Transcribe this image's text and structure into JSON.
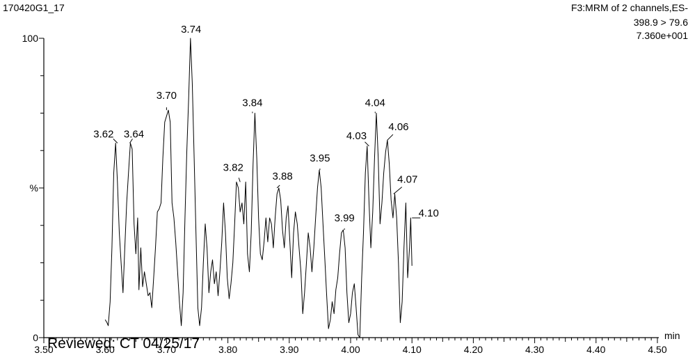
{
  "header": {
    "sample_id": "170420G1_17",
    "scan_info": "F3:MRM of 2 channels,ES-",
    "transition": "398.9 > 79.6",
    "intensity": "7.360e+001"
  },
  "stamp": "Reviewed: CT 04/25/17",
  "chart_data": {
    "type": "line",
    "xlabel": "min",
    "ylabel": "%",
    "xlim": [
      3.5,
      4.5
    ],
    "ylim": [
      0,
      100
    ],
    "x_ticks": [
      "3.50",
      "3.60",
      "3.70",
      "3.80",
      "3.90",
      "4.00",
      "4.10",
      "4.20",
      "4.30",
      "4.40",
      "4.50"
    ],
    "y_ticks": [
      "0",
      "%",
      "100"
    ],
    "peak_labels": [
      {
        "x": 3.62,
        "y": 65,
        "label": "3.62"
      },
      {
        "x": 3.64,
        "y": 65,
        "label": "3.64"
      },
      {
        "x": 3.7,
        "y": 76,
        "label": "3.70"
      },
      {
        "x": 3.74,
        "y": 100,
        "label": "3.74"
      },
      {
        "x": 3.82,
        "y": 52,
        "label": "3.82"
      },
      {
        "x": 3.84,
        "y": 75,
        "label": "3.84"
      },
      {
        "x": 3.88,
        "y": 50,
        "label": "3.88"
      },
      {
        "x": 3.95,
        "y": 56,
        "label": "3.95"
      },
      {
        "x": 3.99,
        "y": 36,
        "label": "3.99"
      },
      {
        "x": 4.03,
        "y": 64,
        "label": "4.03"
      },
      {
        "x": 4.04,
        "y": 75,
        "label": "4.04"
      },
      {
        "x": 4.06,
        "y": 66,
        "label": "4.06"
      },
      {
        "x": 4.07,
        "y": 48,
        "label": "4.07"
      },
      {
        "x": 4.1,
        "y": 40,
        "label": "4.10"
      }
    ],
    "series": [
      {
        "points": [
          [
            3.6,
            6
          ],
          [
            3.603,
            5
          ],
          [
            3.605,
            4
          ],
          [
            3.608,
            12
          ],
          [
            3.611,
            30
          ],
          [
            3.614,
            55
          ],
          [
            3.617,
            65
          ],
          [
            3.62,
            52
          ],
          [
            3.623,
            35
          ],
          [
            3.626,
            25
          ],
          [
            3.629,
            15
          ],
          [
            3.632,
            30
          ],
          [
            3.635,
            45
          ],
          [
            3.638,
            55
          ],
          [
            3.641,
            65
          ],
          [
            3.644,
            63
          ],
          [
            3.647,
            38
          ],
          [
            3.65,
            28
          ],
          [
            3.653,
            40
          ],
          [
            3.655,
            16
          ],
          [
            3.658,
            30
          ],
          [
            3.661,
            17
          ],
          [
            3.664,
            22
          ],
          [
            3.667,
            18
          ],
          [
            3.67,
            14
          ],
          [
            3.673,
            15
          ],
          [
            3.676,
            10
          ],
          [
            3.679,
            20
          ],
          [
            3.682,
            30
          ],
          [
            3.685,
            42
          ],
          [
            3.688,
            43
          ],
          [
            3.691,
            45
          ],
          [
            3.694,
            60
          ],
          [
            3.697,
            72
          ],
          [
            3.7,
            74
          ],
          [
            3.703,
            76
          ],
          [
            3.706,
            72
          ],
          [
            3.709,
            45
          ],
          [
            3.712,
            40
          ],
          [
            3.715,
            32
          ],
          [
            3.718,
            22
          ],
          [
            3.721,
            12
          ],
          [
            3.724,
            4
          ],
          [
            3.727,
            15
          ],
          [
            3.73,
            40
          ],
          [
            3.733,
            62
          ],
          [
            3.736,
            80
          ],
          [
            3.739,
            100
          ],
          [
            3.742,
            85
          ],
          [
            3.745,
            60
          ],
          [
            3.748,
            35
          ],
          [
            3.751,
            10
          ],
          [
            3.754,
            4
          ],
          [
            3.757,
            10
          ],
          [
            3.76,
            25
          ],
          [
            3.763,
            38
          ],
          [
            3.766,
            30
          ],
          [
            3.769,
            15
          ],
          [
            3.772,
            22
          ],
          [
            3.775,
            26
          ],
          [
            3.778,
            18
          ],
          [
            3.781,
            22
          ],
          [
            3.784,
            14
          ],
          [
            3.787,
            22
          ],
          [
            3.79,
            32
          ],
          [
            3.793,
            45
          ],
          [
            3.796,
            35
          ],
          [
            3.799,
            20
          ],
          [
            3.802,
            13
          ],
          [
            3.805,
            18
          ],
          [
            3.808,
            25
          ],
          [
            3.811,
            38
          ],
          [
            3.814,
            52
          ],
          [
            3.817,
            50
          ],
          [
            3.82,
            42
          ],
          [
            3.823,
            45
          ],
          [
            3.826,
            38
          ],
          [
            3.829,
            52
          ],
          [
            3.832,
            28
          ],
          [
            3.835,
            22
          ],
          [
            3.838,
            35
          ],
          [
            3.841,
            58
          ],
          [
            3.844,
            75
          ],
          [
            3.847,
            60
          ],
          [
            3.85,
            40
          ],
          [
            3.853,
            28
          ],
          [
            3.856,
            26
          ],
          [
            3.859,
            32
          ],
          [
            3.862,
            40
          ],
          [
            3.865,
            32
          ],
          [
            3.868,
            40
          ],
          [
            3.871,
            38
          ],
          [
            3.874,
            30
          ],
          [
            3.877,
            40
          ],
          [
            3.88,
            48
          ],
          [
            3.883,
            50
          ],
          [
            3.886,
            46
          ],
          [
            3.889,
            36
          ],
          [
            3.892,
            30
          ],
          [
            3.895,
            40
          ],
          [
            3.898,
            44
          ],
          [
            3.901,
            32
          ],
          [
            3.904,
            20
          ],
          [
            3.907,
            35
          ],
          [
            3.91,
            42
          ],
          [
            3.913,
            38
          ],
          [
            3.916,
            30
          ],
          [
            3.919,
            22
          ],
          [
            3.922,
            8
          ],
          [
            3.925,
            15
          ],
          [
            3.928,
            25
          ],
          [
            3.931,
            35
          ],
          [
            3.934,
            30
          ],
          [
            3.937,
            22
          ],
          [
            3.94,
            30
          ],
          [
            3.943,
            40
          ],
          [
            3.946,
            50
          ],
          [
            3.949,
            56
          ],
          [
            3.952,
            50
          ],
          [
            3.955,
            38
          ],
          [
            3.958,
            26
          ],
          [
            3.961,
            14
          ],
          [
            3.964,
            3
          ],
          [
            3.967,
            6
          ],
          [
            3.97,
            12
          ],
          [
            3.973,
            8
          ],
          [
            3.976,
            16
          ],
          [
            3.979,
            20
          ],
          [
            3.982,
            28
          ],
          [
            3.985,
            35
          ],
          [
            3.988,
            36
          ],
          [
            3.991,
            30
          ],
          [
            3.994,
            15
          ],
          [
            3.997,
            5
          ],
          [
            4.0,
            8
          ],
          [
            4.003,
            15
          ],
          [
            4.006,
            18
          ],
          [
            4.009,
            10
          ],
          [
            4.012,
            1
          ],
          [
            4.015,
            0
          ],
          [
            4.018,
            20
          ],
          [
            4.021,
            35
          ],
          [
            4.024,
            55
          ],
          [
            4.027,
            64
          ],
          [
            4.03,
            45
          ],
          [
            4.033,
            30
          ],
          [
            4.036,
            42
          ],
          [
            4.039,
            60
          ],
          [
            4.042,
            75
          ],
          [
            4.045,
            60
          ],
          [
            4.048,
            38
          ],
          [
            4.051,
            45
          ],
          [
            4.054,
            55
          ],
          [
            4.057,
            62
          ],
          [
            4.06,
            66
          ],
          [
            4.063,
            58
          ],
          [
            4.066,
            46
          ],
          [
            4.069,
            40
          ],
          [
            4.072,
            48
          ],
          [
            4.075,
            40
          ],
          [
            4.078,
            25
          ],
          [
            4.081,
            5
          ],
          [
            4.084,
            12
          ],
          [
            4.087,
            30
          ],
          [
            4.09,
            45
          ],
          [
            4.093,
            20
          ],
          [
            4.096,
            30
          ],
          [
            4.098,
            40
          ],
          [
            4.1,
            24
          ]
        ]
      }
    ]
  }
}
